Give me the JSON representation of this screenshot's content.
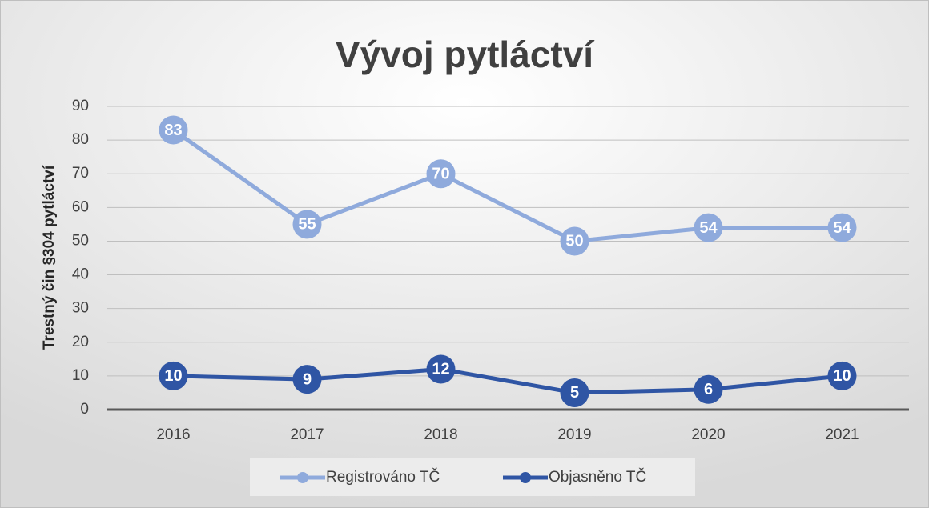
{
  "chart_data": {
    "type": "line",
    "title": "Vývoj pytláctví",
    "y_label": "Trestný čin §304 pytláctví",
    "categories": [
      "2016",
      "2017",
      "2018",
      "2019",
      "2020",
      "2021"
    ],
    "series": [
      {
        "name": "Registrováno TČ",
        "color": "#8faadc",
        "values": [
          83,
          55,
          70,
          50,
          54,
          54
        ]
      },
      {
        "name": "Objasněno TČ",
        "color": "#2f55a4",
        "values": [
          10,
          9,
          12,
          5,
          6,
          10
        ]
      }
    ],
    "ylim": [
      0,
      90
    ],
    "yticks": [
      0,
      10,
      20,
      30,
      40,
      50,
      60,
      70,
      80,
      90
    ],
    "grid": true,
    "legend": "bottom"
  }
}
